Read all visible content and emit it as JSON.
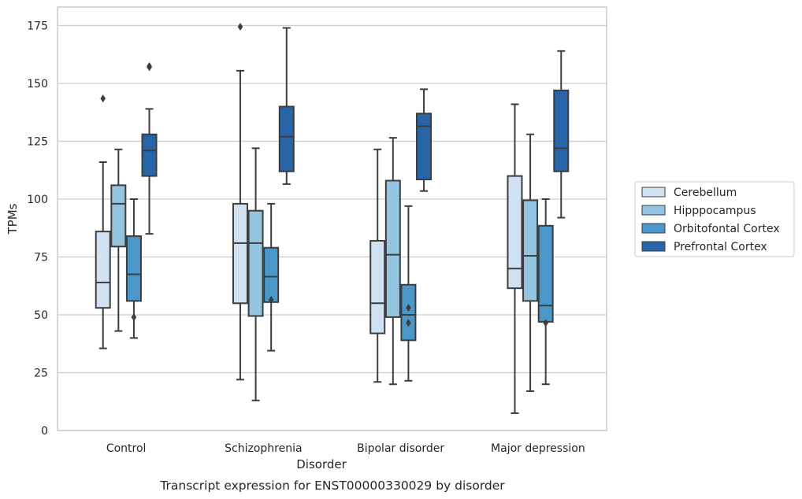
{
  "chart_data": {
    "type": "box",
    "caption": "Transcript expression for ENST00000330029 by disorder",
    "xlabel": "Disorder",
    "ylabel": "TPMs",
    "ylim": [
      0,
      183
    ],
    "yticks": [
      0,
      25,
      50,
      75,
      100,
      125,
      150,
      175
    ],
    "grid": "horizontal",
    "legend_position": "right",
    "categories": [
      "Control",
      "Schizophrenia",
      "Bipolar disorder",
      "Major depression"
    ],
    "series": [
      {
        "name": "Cerebellum",
        "color": "#d0e1f2",
        "boxes": [
          {
            "low": 35.5,
            "q1": 53,
            "median": 64,
            "q3": 86,
            "high": 116,
            "outliers": [
              143.5
            ]
          },
          {
            "low": 22,
            "q1": 55,
            "median": 81,
            "q3": 98,
            "high": 155.5,
            "outliers": [
              174.5
            ]
          },
          {
            "low": 21,
            "q1": 42,
            "median": 55,
            "q3": 82,
            "high": 121.5,
            "outliers": []
          },
          {
            "low": 7.5,
            "q1": 61.5,
            "median": 70,
            "q3": 110,
            "high": 141,
            "outliers": []
          }
        ]
      },
      {
        "name": "Hipppocampus",
        "color": "#94c4df",
        "boxes": [
          {
            "low": 43,
            "q1": 79.5,
            "median": 98,
            "q3": 106,
            "high": 121.5,
            "outliers": []
          },
          {
            "low": 13,
            "q1": 49.5,
            "median": 81,
            "q3": 95,
            "high": 122,
            "outliers": []
          },
          {
            "low": 20,
            "q1": 49,
            "median": 76,
            "q3": 108,
            "high": 126.5,
            "outliers": []
          },
          {
            "low": 17,
            "q1": 56,
            "median": 75.5,
            "q3": 99.5,
            "high": 128,
            "outliers": []
          }
        ]
      },
      {
        "name": "Orbitofontal Cortex",
        "color": "#4a98c9",
        "boxes": [
          {
            "low": 40,
            "q1": 56,
            "median": 67.5,
            "q3": 84,
            "high": 100,
            "outliers": [
              49
            ]
          },
          {
            "low": 34.5,
            "q1": 55.5,
            "median": 66.5,
            "q3": 79,
            "high": 98,
            "outliers": [
              56.5
            ]
          },
          {
            "low": 21.5,
            "q1": 39,
            "median": 50,
            "q3": 63,
            "high": 97,
            "outliers": [
              53,
              46.5
            ]
          },
          {
            "low": 20,
            "q1": 47,
            "median": 54,
            "q3": 88.5,
            "high": 100,
            "outliers": [
              46.5
            ]
          }
        ]
      },
      {
        "name": "Prefrontal Cortex",
        "color": "#2765a8",
        "boxes": [
          {
            "low": 85,
            "q1": 110,
            "median": 121,
            "q3": 128,
            "high": 139,
            "outliers": [
              157,
              157.5
            ]
          },
          {
            "low": 106.5,
            "q1": 112,
            "median": 127,
            "q3": 140,
            "high": 174,
            "outliers": []
          },
          {
            "low": 103.5,
            "q1": 108.5,
            "median": 131.5,
            "q3": 137,
            "high": 147.5,
            "outliers": []
          },
          {
            "low": 92,
            "q1": 112,
            "median": 122,
            "q3": 147,
            "high": 164,
            "outliers": []
          }
        ]
      }
    ]
  }
}
